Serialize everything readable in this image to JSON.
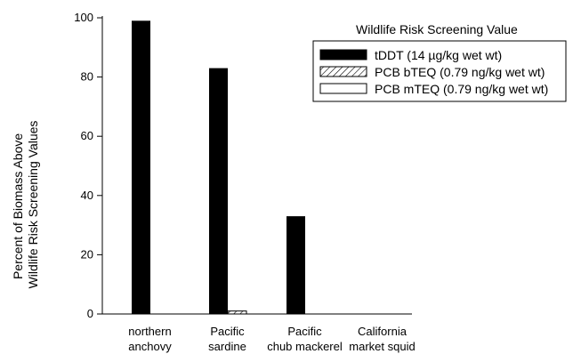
{
  "chart_data": {
    "type": "bar",
    "categories": [
      [
        "northern",
        "anchovy"
      ],
      [
        "Pacific",
        "sardine"
      ],
      [
        "Pacific",
        "chub mackerel"
      ],
      [
        "California",
        "market squid"
      ]
    ],
    "ylabel": [
      "Percent of Biomass Above",
      "Wildlife Risk Screening Values"
    ],
    "ylim": [
      0,
      100
    ],
    "yticks": [
      0,
      20,
      40,
      60,
      80,
      100
    ],
    "legend_title": "Wildlife Risk Screening Value",
    "legend_position": "top-right",
    "grid": false,
    "series": [
      {
        "name": "tDDT (14 µg/kg wet wt)",
        "fill": "solid",
        "color": "#000000",
        "values": [
          99,
          83,
          33,
          0
        ]
      },
      {
        "name": "PCB bTEQ (0.79 ng/kg wet wt)",
        "fill": "hatched",
        "color": "#000000",
        "values": [
          0,
          1,
          0,
          0
        ]
      },
      {
        "name": "PCB mTEQ (0.79 ng/kg wet wt)",
        "fill": "hollow",
        "color": "#ffffff",
        "values": [
          0,
          0,
          0,
          0
        ]
      }
    ]
  }
}
